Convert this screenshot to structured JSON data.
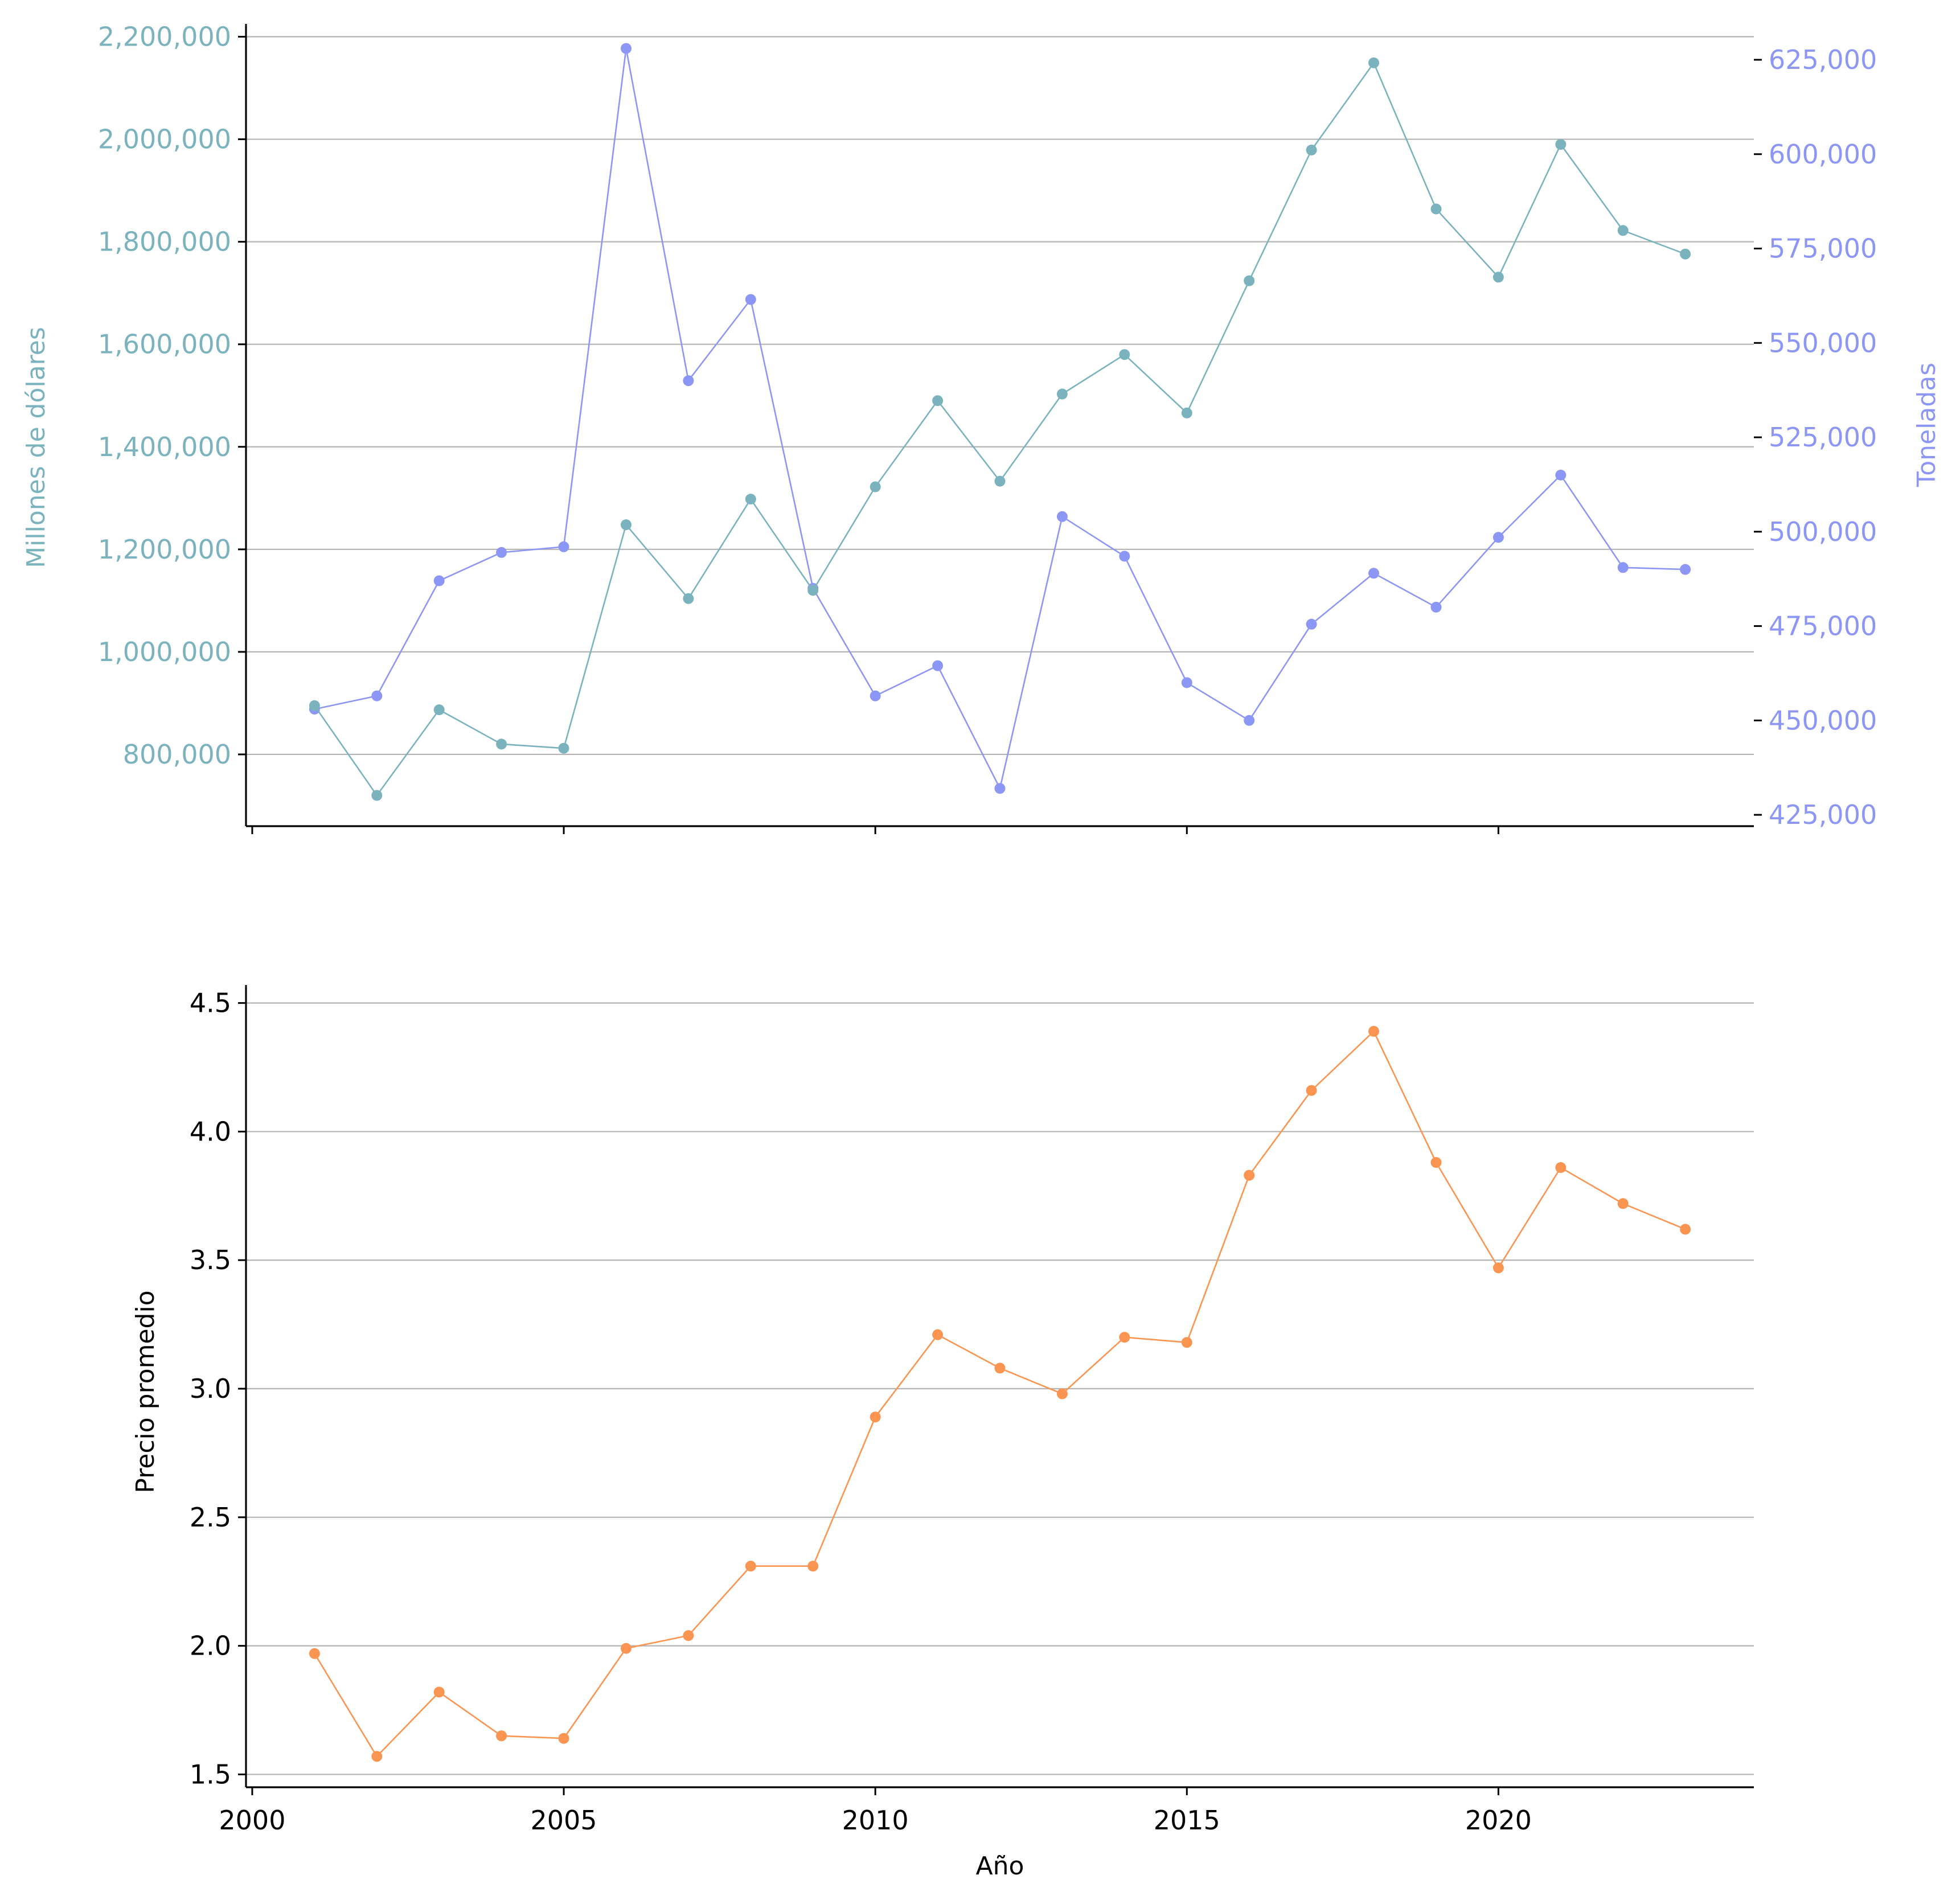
{
  "colors": {
    "value": "#7ab3be",
    "tons": "#8c96f4",
    "price": "#fa9451",
    "axis": "#000000",
    "grid": "#b3b3b3"
  },
  "chart_data": [
    {
      "type": "line",
      "dual_axis": true,
      "x": [
        2001,
        2002,
        2003,
        2004,
        2005,
        2006,
        2007,
        2008,
        2009,
        2010,
        2011,
        2012,
        2013,
        2014,
        2015,
        2016,
        2017,
        2018,
        2019,
        2020,
        2021,
        2022,
        2023
      ],
      "xlim": [
        1999.9,
        2024.1
      ],
      "xticks": [
        2000,
        2005,
        2010,
        2015,
        2020
      ],
      "grid": true,
      "series": [
        {
          "axis": "left",
          "values": [
            895000,
            720000,
            887000,
            820000,
            812000,
            1248000,
            1104000,
            1298000,
            1120000,
            1322000,
            1490000,
            1333000,
            1503000,
            1580000,
            1466000,
            1724000,
            1979000,
            2149000,
            1864000,
            1731000,
            1990000,
            1822000,
            1776000
          ]
        },
        {
          "axis": "right",
          "values": [
            453000,
            456500,
            487000,
            494500,
            496000,
            628000,
            540000,
            561500,
            485000,
            456500,
            464500,
            432000,
            504000,
            493500,
            460000,
            450000,
            475500,
            489000,
            480000,
            498500,
            515000,
            490500,
            490000
          ]
        }
      ],
      "y_left": {
        "label": "Millones de dólares",
        "lim": [
          660000,
          2225000
        ],
        "ticks": [
          800000,
          1000000,
          1200000,
          1400000,
          1600000,
          1800000,
          2000000,
          2200000
        ],
        "tick_labels": [
          "800,000",
          "1,000,000",
          "1,200,000",
          "1,400,000",
          "1,600,000",
          "1,800,000",
          "2,000,000",
          "2,200,000"
        ]
      },
      "y_right": {
        "label": "Toneladas",
        "lim": [
          422000,
          634500
        ],
        "ticks": [
          425000,
          450000,
          475000,
          500000,
          525000,
          550000,
          575000,
          600000,
          625000
        ],
        "tick_labels": [
          "425,000",
          "450,000",
          "475,000",
          "500,000",
          "525,000",
          "550,000",
          "575,000",
          "600,000",
          "625,000"
        ]
      }
    },
    {
      "type": "line",
      "x": [
        2001,
        2002,
        2003,
        2004,
        2005,
        2006,
        2007,
        2008,
        2009,
        2010,
        2011,
        2012,
        2013,
        2014,
        2015,
        2016,
        2017,
        2018,
        2019,
        2020,
        2021,
        2022,
        2023
      ],
      "xlim": [
        1999.9,
        2024.1
      ],
      "xticks": [
        2000,
        2005,
        2010,
        2015,
        2020
      ],
      "xtick_labels": [
        "2000",
        "2005",
        "2010",
        "2015",
        "2020"
      ],
      "xlabel": "Año",
      "grid": true,
      "series": [
        {
          "values": [
            1.97,
            1.57,
            1.82,
            1.65,
            1.64,
            1.99,
            2.04,
            2.31,
            2.31,
            2.89,
            3.21,
            3.08,
            2.98,
            3.2,
            3.18,
            3.83,
            4.16,
            4.39,
            3.88,
            3.47,
            3.86,
            3.72,
            3.62
          ]
        }
      ],
      "y": {
        "label": "Precio promedio",
        "lim": [
          1.45,
          4.57
        ],
        "ticks": [
          1.5,
          2.0,
          2.5,
          3.0,
          3.5,
          4.0,
          4.5
        ],
        "tick_labels": [
          "1.5",
          "2.0",
          "2.5",
          "3.0",
          "3.5",
          "4.0",
          "4.5"
        ]
      }
    }
  ]
}
